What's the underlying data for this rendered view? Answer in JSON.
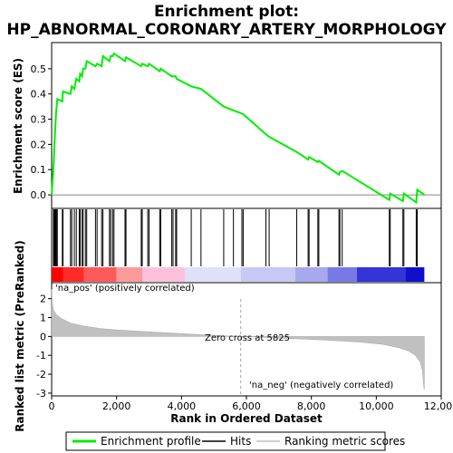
{
  "chart_data": {
    "type": "line",
    "title_line1": "Enrichment plot:",
    "title_line2": "HP_ABNORMAL_CORONARY_ARTERY_MORPHOLOGY",
    "es_panel": {
      "ylabel": "Enrichment score (ES)",
      "ylim": [
        -0.05,
        0.6
      ],
      "yticks": [
        "0.0",
        "0.1",
        "0.2",
        "0.3",
        "0.4",
        "0.5"
      ],
      "ytick_values": [
        0.0,
        0.1,
        0.2,
        0.3,
        0.4,
        0.5
      ],
      "line_color": "#00ee00",
      "profile": [
        [
          0,
          0.0
        ],
        [
          60,
          0.11
        ],
        [
          80,
          0.18
        ],
        [
          110,
          0.26
        ],
        [
          140,
          0.33
        ],
        [
          175,
          0.38
        ],
        [
          330,
          0.37
        ],
        [
          350,
          0.41
        ],
        [
          580,
          0.4
        ],
        [
          620,
          0.43
        ],
        [
          700,
          0.42
        ],
        [
          760,
          0.46
        ],
        [
          850,
          0.45
        ],
        [
          880,
          0.48
        ],
        [
          940,
          0.47
        ],
        [
          970,
          0.5
        ],
        [
          1040,
          0.5
        ],
        [
          1080,
          0.53
        ],
        [
          1350,
          0.51
        ],
        [
          1400,
          0.52
        ],
        [
          1540,
          0.51
        ],
        [
          1580,
          0.55
        ],
        [
          1780,
          0.53
        ],
        [
          1820,
          0.55
        ],
        [
          1880,
          0.55
        ],
        [
          1920,
          0.56
        ],
        [
          2260,
          0.53
        ],
        [
          2290,
          0.545
        ],
        [
          2760,
          0.51
        ],
        [
          2790,
          0.52
        ],
        [
          2960,
          0.51
        ],
        [
          3000,
          0.52
        ],
        [
          3330,
          0.49
        ],
        [
          3360,
          0.5
        ],
        [
          3700,
          0.47
        ],
        [
          3740,
          0.47
        ],
        [
          3820,
          0.47
        ],
        [
          3850,
          0.46
        ],
        [
          4300,
          0.43
        ],
        [
          4600,
          0.42
        ],
        [
          5300,
          0.35
        ],
        [
          5900,
          0.32
        ],
        [
          6600,
          0.24
        ],
        [
          6700,
          0.23
        ],
        [
          7550,
          0.17
        ],
        [
          7900,
          0.14
        ],
        [
          7930,
          0.15
        ],
        [
          8200,
          0.13
        ],
        [
          8230,
          0.135
        ],
        [
          8850,
          0.08
        ],
        [
          8880,
          0.09
        ],
        [
          8950,
          0.095
        ],
        [
          10400,
          -0.02
        ],
        [
          10430,
          0.005
        ],
        [
          10820,
          -0.025
        ],
        [
          10850,
          0.005
        ],
        [
          11230,
          -0.03
        ],
        [
          11260,
          0.02
        ],
        [
          11480,
          0.0
        ]
      ]
    },
    "hits": [
      55,
      70,
      90,
      100,
      115,
      130,
      150,
      175,
      330,
      350,
      580,
      620,
      700,
      760,
      850,
      880,
      940,
      970,
      1040,
      1080,
      1350,
      1400,
      1540,
      1580,
      1780,
      1820,
      1880,
      1920,
      2260,
      2290,
      2760,
      2790,
      2960,
      3000,
      3330,
      3360,
      3700,
      3740,
      3820,
      3850,
      4300,
      4600,
      5300,
      5600,
      5860,
      5900,
      6600,
      6700,
      7550,
      7900,
      7930,
      8200,
      8230,
      8850,
      8880,
      8950,
      10400,
      10430,
      10820,
      10850,
      11230,
      11260
    ],
    "metric_panel": {
      "ylabel": "Ranked list metric (PreRanked)",
      "ylim": [
        -3.1,
        2.8
      ],
      "yticks": [
        "2",
        "1",
        "0",
        "-1",
        "-2",
        "-3"
      ],
      "ytick_values": [
        2,
        1,
        0,
        -1,
        -2,
        -3
      ],
      "fill_color": "#c0c0c0",
      "curve": [
        [
          0,
          2.5
        ],
        [
          20,
          1.8
        ],
        [
          60,
          1.4
        ],
        [
          150,
          1.15
        ],
        [
          300,
          0.95
        ],
        [
          600,
          0.7
        ],
        [
          1000,
          0.55
        ],
        [
          1500,
          0.42
        ],
        [
          2000,
          0.35
        ],
        [
          3000,
          0.25
        ],
        [
          4000,
          0.15
        ],
        [
          5000,
          0.06
        ],
        [
          5825,
          0.0
        ],
        [
          6500,
          -0.05
        ],
        [
          7500,
          -0.12
        ],
        [
          8500,
          -0.2
        ],
        [
          9500,
          -0.3
        ],
        [
          10200,
          -0.42
        ],
        [
          10700,
          -0.6
        ],
        [
          11000,
          -0.78
        ],
        [
          11200,
          -1.0
        ],
        [
          11350,
          -1.35
        ],
        [
          11420,
          -1.8
        ],
        [
          11470,
          -2.8
        ],
        [
          11480,
          -2.8
        ]
      ],
      "zero_cross_label": "Zero cross at 5825",
      "zero_cross_rank": 5825,
      "pos_label": "'na_pos' (positively correlated)",
      "neg_label": "'na_neg' (negatively correlated)",
      "pos_label_color": "#ff0000",
      "neg_label_color": "#0000ff"
    },
    "xaxis": {
      "label": "Rank in Ordered Dataset",
      "xlim": [
        0,
        12000
      ],
      "ticks": [
        "0",
        "2,000",
        "4,000",
        "6,000",
        "8,000",
        "10,000",
        "12,000"
      ],
      "tick_values": [
        0,
        2000,
        4000,
        6000,
        8000,
        10000,
        12000
      ],
      "dataset_size": 11480
    },
    "rank_bar": {
      "colors": [
        "#ff0000",
        "#ff2a2a",
        "#ff5a5a",
        "#ff9a9a",
        "#ffc0dc",
        "#e0e0f8",
        "#c8c8f4",
        "#a8a8ee",
        "#7878e6",
        "#3434d8",
        "#1010cc"
      ],
      "breaks": [
        0,
        350,
        1000,
        2000,
        2800,
        4100,
        5825,
        7500,
        8500,
        9400,
        10900,
        11480
      ]
    },
    "legend": {
      "items": [
        {
          "label": "Enrichment profile",
          "color": "#00ee00",
          "kind": "thick"
        },
        {
          "label": "Hits",
          "color": "#000000",
          "kind": "thin"
        },
        {
          "label": "Ranking metric scores",
          "color": "#c0c0c0",
          "kind": "thin"
        }
      ]
    }
  }
}
